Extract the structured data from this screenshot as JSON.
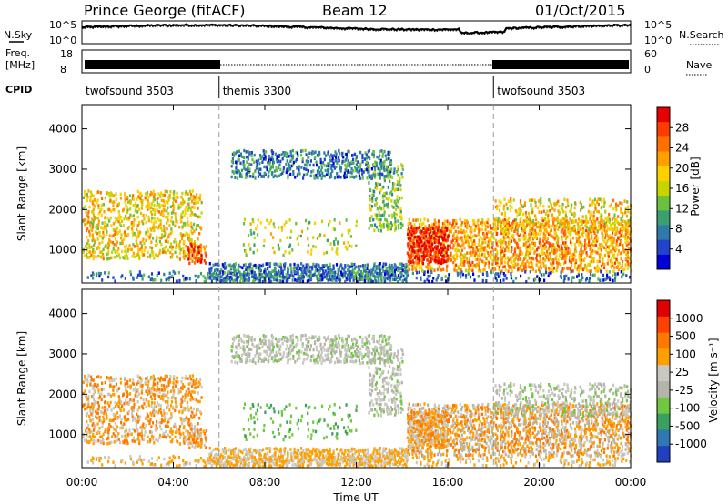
{
  "header": {
    "station": "Prince George (fitACF)",
    "beam": "Beam 12",
    "date": "01/Oct/2015"
  },
  "left_labels": {
    "nsky": "N.Sky",
    "freq_line1": "Freq.",
    "freq_line2": "[MHz]",
    "cpid": "CPID"
  },
  "right_labels": {
    "nsearch": "N.Search",
    "nave": "Nave"
  },
  "noise_axis": {
    "left_top": "10^5",
    "left_bottom": "10^0",
    "right_top": "10^5",
    "right_bottom": "10^0"
  },
  "freq_axis": {
    "left_top": "18",
    "left_bottom": "8",
    "right_top": "60",
    "right_bottom": "0"
  },
  "cpid_segments": [
    {
      "label": "twofsound 3503",
      "start_hour": 0,
      "end_hour": 6
    },
    {
      "label": "themis 3300",
      "start_hour": 6,
      "end_hour": 18
    },
    {
      "label": "twofsound 3503",
      "start_hour": 18,
      "end_hour": 24
    }
  ],
  "chart_data": [
    {
      "type": "heatmap",
      "name": "power",
      "ylabel": "Slant Range [km]",
      "yticks": [
        1000,
        2000,
        3000,
        4000
      ],
      "ylim": [
        180,
        4600
      ],
      "colorbar": {
        "label": "Power [dB]",
        "ticks": [
          "28",
          "24",
          "20",
          "16",
          "12",
          "8",
          "4"
        ],
        "colors": [
          "#0000d8",
          "#2244cc",
          "#2f7aa8",
          "#3aa070",
          "#6cc040",
          "#c8d400",
          "#ffd000",
          "#ffa000",
          "#ff7000",
          "#ff3c00",
          "#e80000"
        ]
      }
    },
    {
      "type": "heatmap",
      "name": "velocity",
      "xlabel": "Time UT",
      "ylabel": "Slant Range [km]",
      "yticks": [
        1000,
        2000,
        3000,
        4000
      ],
      "ylim": [
        180,
        4600
      ],
      "xticks": [
        "00:00",
        "04:00",
        "08:00",
        "12:00",
        "16:00",
        "20:00",
        "00:00"
      ],
      "xlim_hours": [
        0,
        24
      ],
      "colorbar": {
        "label": "Velocity [m s⁻¹]",
        "ticks": [
          "1000",
          "500",
          "100",
          "25",
          "-25",
          "-100",
          "-500",
          "-1000"
        ],
        "colors": [
          "#2040c0",
          "#2f78b0",
          "#3aa060",
          "#70c840",
          "#b4b4aa",
          "#c8c8c0",
          "#ffa000",
          "#ff7800",
          "#ff4000",
          "#e00000"
        ]
      }
    }
  ]
}
